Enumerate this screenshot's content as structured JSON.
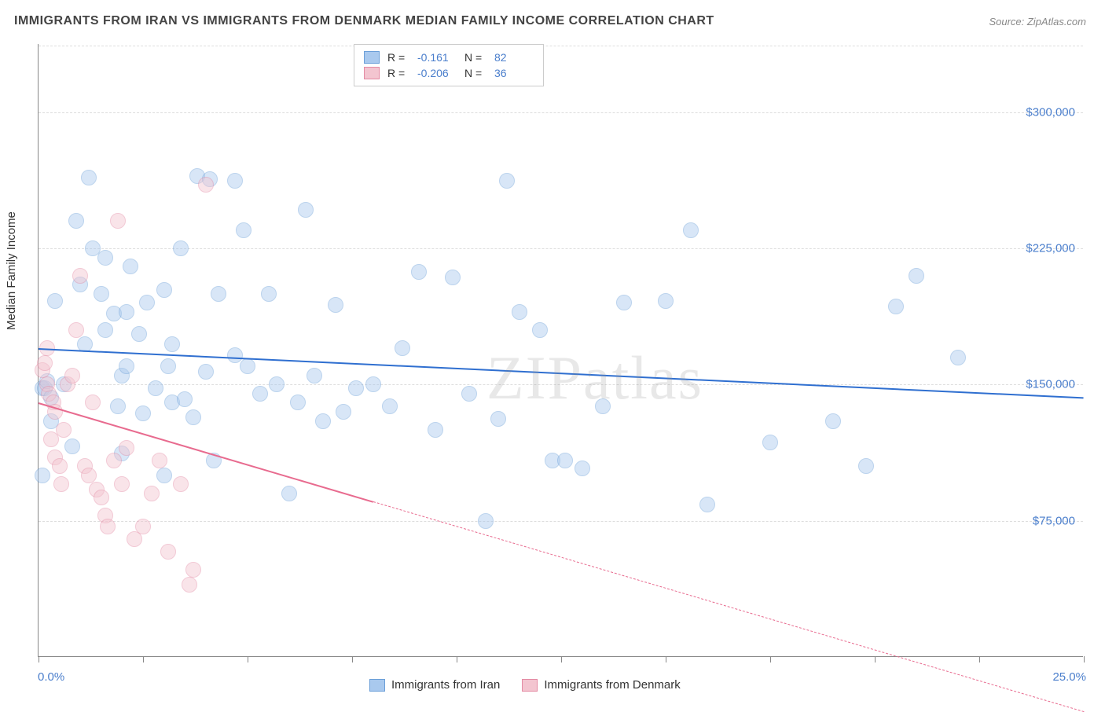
{
  "title": "IMMIGRANTS FROM IRAN VS IMMIGRANTS FROM DENMARK MEDIAN FAMILY INCOME CORRELATION CHART",
  "source_label": "Source: ",
  "source_name": "ZipAtlas.com",
  "watermark": "ZIPatlas",
  "chart": {
    "type": "scatter",
    "ylabel": "Median Family Income",
    "xlim": [
      0,
      25
    ],
    "ylim": [
      0,
      337500
    ],
    "xlim_labels": {
      "min": "0.0%",
      "max": "25.0%"
    },
    "ytick_vals": [
      75000,
      150000,
      225000,
      300000
    ],
    "ytick_labels": [
      "$75,000",
      "$150,000",
      "$225,000",
      "$300,000"
    ],
    "xtick_vals": [
      0,
      2.5,
      5,
      7.5,
      10,
      12.5,
      15,
      17.5,
      20,
      22.5,
      25
    ],
    "grid_color": "#dddddd",
    "background_color": "#ffffff",
    "axis_color": "#888888",
    "label_fontsize": 15,
    "tick_fontsize": 15,
    "tick_color": "#4a7ecc",
    "marker_radius": 10,
    "marker_opacity": 0.45
  },
  "series": [
    {
      "name": "Immigrants from Iran",
      "color_fill": "#a9c9ee",
      "color_stroke": "#6b9fd8",
      "line_color": "#2f6fd0",
      "r_value": "-0.161",
      "n_value": "82",
      "trend": {
        "x1": 0,
        "y1": 170000,
        "x2": 25,
        "y2": 143000,
        "solid_until_x": 25
      },
      "points": [
        [
          0.1,
          148000
        ],
        [
          0.1,
          100000
        ],
        [
          0.15,
          148000
        ],
        [
          0.2,
          152000
        ],
        [
          0.3,
          143000
        ],
        [
          0.3,
          130000
        ],
        [
          0.4,
          196000
        ],
        [
          0.6,
          150000
        ],
        [
          0.8,
          116000
        ],
        [
          0.9,
          240000
        ],
        [
          1.0,
          205000
        ],
        [
          1.1,
          172000
        ],
        [
          1.2,
          264000
        ],
        [
          1.3,
          225000
        ],
        [
          1.5,
          200000
        ],
        [
          1.6,
          220000
        ],
        [
          1.6,
          180000
        ],
        [
          1.8,
          189000
        ],
        [
          1.9,
          138000
        ],
        [
          2.0,
          155000
        ],
        [
          2.0,
          112000
        ],
        [
          2.1,
          190000
        ],
        [
          2.1,
          160000
        ],
        [
          2.2,
          215000
        ],
        [
          2.4,
          178000
        ],
        [
          2.5,
          134000
        ],
        [
          2.6,
          195000
        ],
        [
          2.8,
          148000
        ],
        [
          3.0,
          202000
        ],
        [
          3.0,
          100000
        ],
        [
          3.1,
          160000
        ],
        [
          3.2,
          172000
        ],
        [
          3.2,
          140000
        ],
        [
          3.4,
          225000
        ],
        [
          3.5,
          142000
        ],
        [
          3.7,
          132000
        ],
        [
          3.8,
          265000
        ],
        [
          4.0,
          157000
        ],
        [
          4.1,
          263000
        ],
        [
          4.2,
          108000
        ],
        [
          4.3,
          200000
        ],
        [
          4.7,
          166000
        ],
        [
          4.7,
          262000
        ],
        [
          4.9,
          235000
        ],
        [
          5.0,
          160000
        ],
        [
          5.3,
          145000
        ],
        [
          5.5,
          200000
        ],
        [
          5.7,
          150000
        ],
        [
          6.0,
          90000
        ],
        [
          6.2,
          140000
        ],
        [
          6.4,
          246000
        ],
        [
          6.6,
          155000
        ],
        [
          6.8,
          130000
        ],
        [
          7.1,
          194000
        ],
        [
          7.3,
          135000
        ],
        [
          7.6,
          148000
        ],
        [
          8.0,
          150000
        ],
        [
          8.4,
          138000
        ],
        [
          8.7,
          170000
        ],
        [
          9.1,
          212000
        ],
        [
          9.5,
          125000
        ],
        [
          9.9,
          209000
        ],
        [
          10.3,
          145000
        ],
        [
          10.7,
          75000
        ],
        [
          11.0,
          131000
        ],
        [
          11.2,
          262000
        ],
        [
          11.5,
          190000
        ],
        [
          12.0,
          180000
        ],
        [
          12.3,
          108000
        ],
        [
          12.6,
          108000
        ],
        [
          13.0,
          104000
        ],
        [
          13.5,
          138000
        ],
        [
          14.0,
          195000
        ],
        [
          15.0,
          196000
        ],
        [
          15.6,
          235000
        ],
        [
          16.0,
          84000
        ],
        [
          17.5,
          118000
        ],
        [
          19.0,
          130000
        ],
        [
          19.8,
          105000
        ],
        [
          20.5,
          193000
        ],
        [
          21.0,
          210000
        ],
        [
          22.0,
          165000
        ]
      ]
    },
    {
      "name": "Immigrants from Denmark",
      "color_fill": "#f3c5d0",
      "color_stroke": "#e48aa3",
      "line_color": "#e86b8f",
      "r_value": "-0.206",
      "n_value": "36",
      "trend": {
        "x1": 0,
        "y1": 140000,
        "x2": 25,
        "y2": -30000,
        "solid_until_x": 8
      },
      "points": [
        [
          0.1,
          158000
        ],
        [
          0.15,
          162000
        ],
        [
          0.2,
          170000
        ],
        [
          0.2,
          150000
        ],
        [
          0.25,
          145000
        ],
        [
          0.3,
          120000
        ],
        [
          0.35,
          140000
        ],
        [
          0.4,
          135000
        ],
        [
          0.4,
          110000
        ],
        [
          0.5,
          105000
        ],
        [
          0.55,
          95000
        ],
        [
          0.6,
          125000
        ],
        [
          0.7,
          150000
        ],
        [
          0.8,
          155000
        ],
        [
          0.9,
          180000
        ],
        [
          1.0,
          210000
        ],
        [
          1.1,
          105000
        ],
        [
          1.2,
          100000
        ],
        [
          1.3,
          140000
        ],
        [
          1.4,
          92000
        ],
        [
          1.5,
          88000
        ],
        [
          1.6,
          78000
        ],
        [
          1.65,
          72000
        ],
        [
          1.8,
          108000
        ],
        [
          1.9,
          240000
        ],
        [
          2.0,
          95000
        ],
        [
          2.1,
          115000
        ],
        [
          2.3,
          65000
        ],
        [
          2.5,
          72000
        ],
        [
          2.7,
          90000
        ],
        [
          2.9,
          108000
        ],
        [
          3.1,
          58000
        ],
        [
          3.4,
          95000
        ],
        [
          3.6,
          40000
        ],
        [
          3.7,
          48000
        ],
        [
          4.0,
          260000
        ]
      ]
    }
  ],
  "legend_top": {
    "r_label": "R =",
    "n_label": "N ="
  },
  "legend_bottom_labels": [
    "Immigrants from Iran",
    "Immigrants from Denmark"
  ]
}
